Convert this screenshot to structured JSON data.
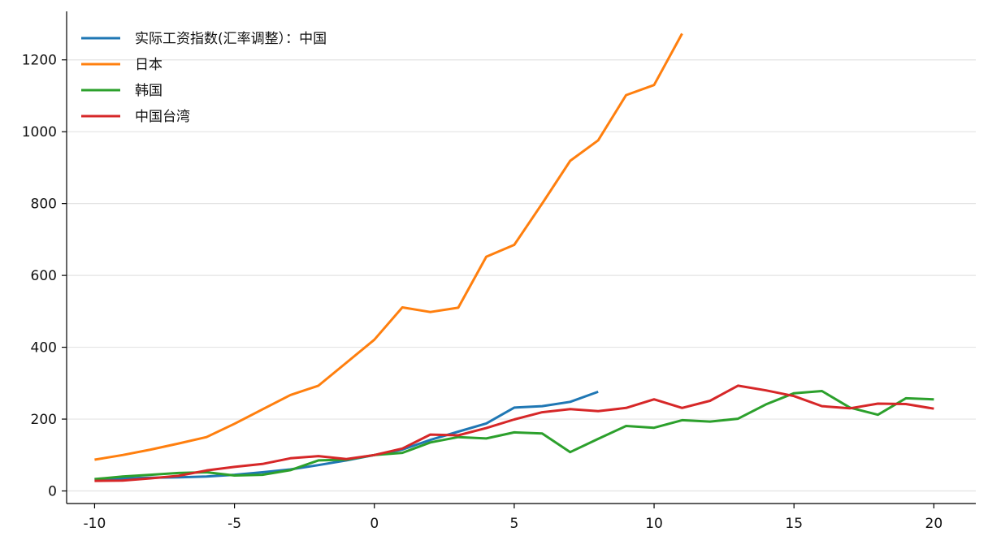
{
  "chart_data": {
    "type": "line",
    "title": "",
    "xlabel": "",
    "ylabel": "",
    "xlim": [
      -11,
      21.5
    ],
    "ylim": [
      -35,
      1335
    ],
    "x_ticks": [
      -10,
      -5,
      0,
      5,
      10,
      15,
      20
    ],
    "y_ticks": [
      0,
      200,
      400,
      600,
      800,
      1000,
      1200
    ],
    "grid": "horizontal",
    "legend_position": "top-left",
    "series": [
      {
        "name": "实际工资指数(汇率调整）：中国",
        "color": "#1f77b4",
        "x": [
          -10,
          -9,
          -8,
          -7,
          -6,
          -5,
          -4,
          -3,
          -2,
          -1,
          0,
          1,
          2,
          3,
          4,
          5,
          6,
          7,
          8
        ],
        "y": [
          32,
          35,
          37,
          38,
          40,
          45,
          52,
          60,
          72,
          85,
          100,
          115,
          142,
          165,
          188,
          232,
          236,
          248,
          276
        ]
      },
      {
        "name": "日本",
        "color": "#ff7f0e",
        "x": [
          -10,
          -9,
          -8,
          -7,
          -6,
          -5,
          -4,
          -3,
          -2,
          -1,
          0,
          1,
          2,
          3,
          4,
          5,
          6,
          7,
          8,
          9,
          10,
          11
        ],
        "y": [
          87,
          100,
          115,
          132,
          150,
          187,
          227,
          267,
          293,
          357,
          421,
          511,
          498,
          510,
          652,
          685,
          800,
          919,
          976,
          1102,
          1130,
          1273
        ]
      },
      {
        "name": "韩国",
        "color": "#2ca02c",
        "x": [
          -10,
          -9,
          -8,
          -7,
          -6,
          -5,
          -4,
          -3,
          -2,
          -1,
          0,
          1,
          2,
          3,
          4,
          5,
          6,
          7,
          8,
          9,
          10,
          11,
          12,
          13,
          14,
          15,
          16,
          17,
          18,
          19,
          20
        ],
        "y": [
          33,
          40,
          45,
          50,
          52,
          43,
          45,
          58,
          85,
          87,
          100,
          106,
          135,
          150,
          146,
          163,
          160,
          108,
          145,
          181,
          176,
          197,
          193,
          201,
          241,
          272,
          278,
          232,
          212,
          258,
          255
        ]
      },
      {
        "name": "中国台湾",
        "color": "#d62728",
        "x": [
          -10,
          -9,
          -8,
          -7,
          -6,
          -5,
          -4,
          -3,
          -2,
          -1,
          0,
          1,
          2,
          3,
          4,
          5,
          6,
          7,
          8,
          9,
          10,
          11,
          12,
          13,
          14,
          15,
          16,
          17,
          18,
          19,
          20
        ],
        "y": [
          28,
          29,
          35,
          42,
          57,
          67,
          75,
          91,
          97,
          89,
          100,
          118,
          157,
          155,
          175,
          199,
          219,
          228,
          222,
          231,
          255,
          231,
          251,
          293,
          280,
          264,
          236,
          230,
          243,
          242,
          229
        ]
      }
    ]
  }
}
